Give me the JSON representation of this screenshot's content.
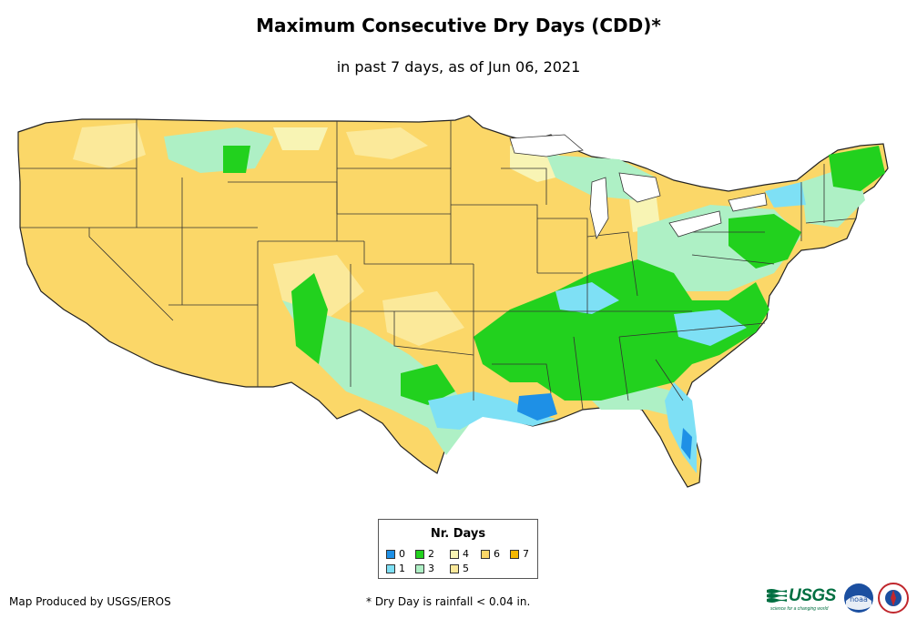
{
  "title": "Maximum Consecutive Dry Days (CDD)*",
  "subtitle": "in past 7 days, as of Jun 06, 2021",
  "legend": {
    "title": "Nr. Days",
    "items": [
      {
        "label": "0",
        "color": "#1e90e6"
      },
      {
        "label": "1",
        "color": "#7ee0f5"
      },
      {
        "label": "2",
        "color": "#22d11e"
      },
      {
        "label": "3",
        "color": "#aef0c5"
      },
      {
        "label": "4",
        "color": "#f8f4b4"
      },
      {
        "label": "5",
        "color": "#fbe99a"
      },
      {
        "label": "6",
        "color": "#fbd768"
      },
      {
        "label": "7",
        "color": "#f5b800"
      }
    ]
  },
  "credit": "Map Produced by USGS/EROS",
  "footnote": "* Dry Day is rainfall < 0.04 in.",
  "logos": {
    "usgs_text": "USGS",
    "usgs_tagline": "science for a changing world",
    "noaa_text": "noaa"
  },
  "map_colors": {
    "dry6": "#fbd768",
    "dry5": "#fbe99a",
    "dry4": "#f8f4b4",
    "d3": "#aef0c5",
    "d2": "#22d11e",
    "d1": "#7ee0f5",
    "d0": "#1e90e6"
  }
}
